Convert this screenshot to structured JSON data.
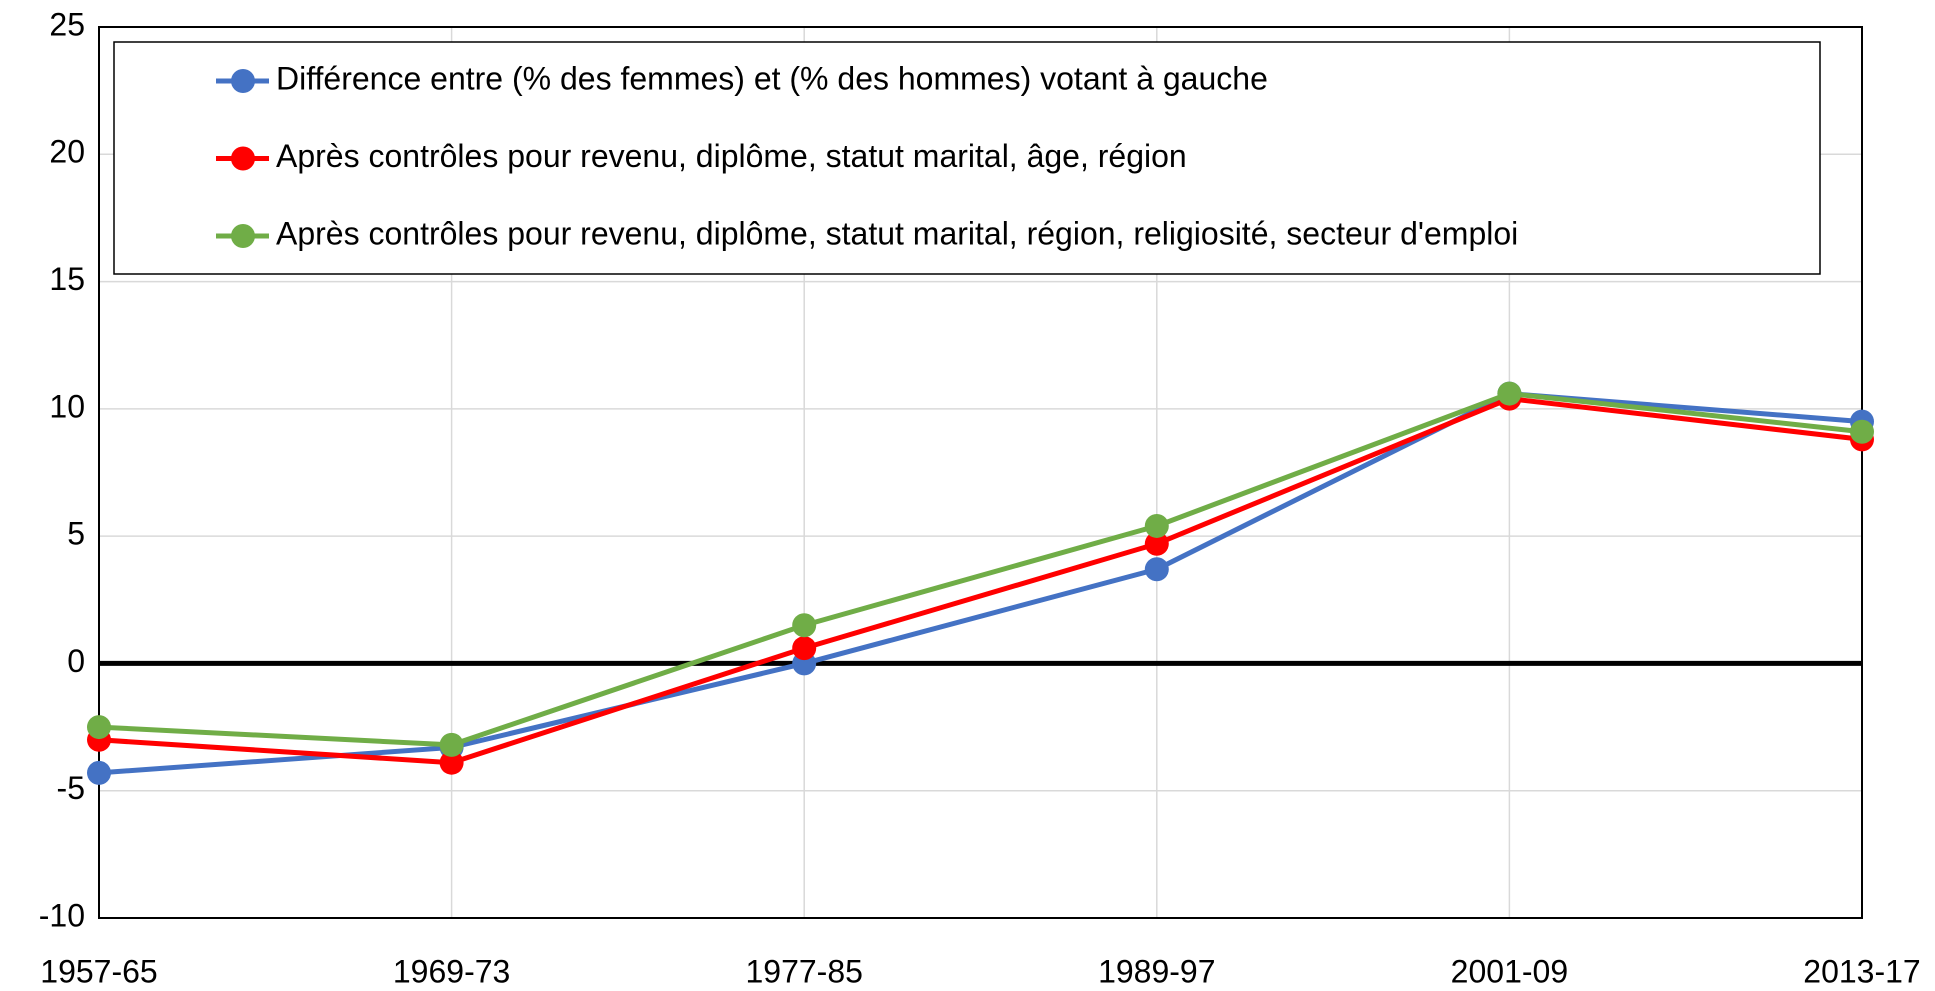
{
  "chart_data": {
    "type": "line",
    "categories": [
      "1957-65",
      "1969-73",
      "1977-85",
      "1989-97",
      "2001-09",
      "2013-17"
    ],
    "series": [
      {
        "name": "Différence entre (% des femmes) et (% des hommes) votant à gauche",
        "color": "#4472c4",
        "values": [
          -4.3,
          -3.3,
          0.0,
          3.7,
          10.6,
          9.5
        ]
      },
      {
        "name": "Après contrôles pour revenu, diplôme, statut marital, âge, région",
        "color": "#ff0000",
        "values": [
          -3.0,
          -3.9,
          0.6,
          4.7,
          10.4,
          8.8
        ]
      },
      {
        "name": "Après contrôles pour revenu, diplôme, statut marital, région, religiosité, secteur d'emploi",
        "color": "#70ad47",
        "values": [
          -2.5,
          -3.2,
          1.5,
          5.4,
          10.6,
          9.1
        ]
      }
    ],
    "ylim": [
      -10,
      25
    ],
    "yticks": [
      -10,
      -5,
      0,
      5,
      10,
      15,
      20,
      25
    ],
    "grid": true,
    "legend": "top"
  }
}
